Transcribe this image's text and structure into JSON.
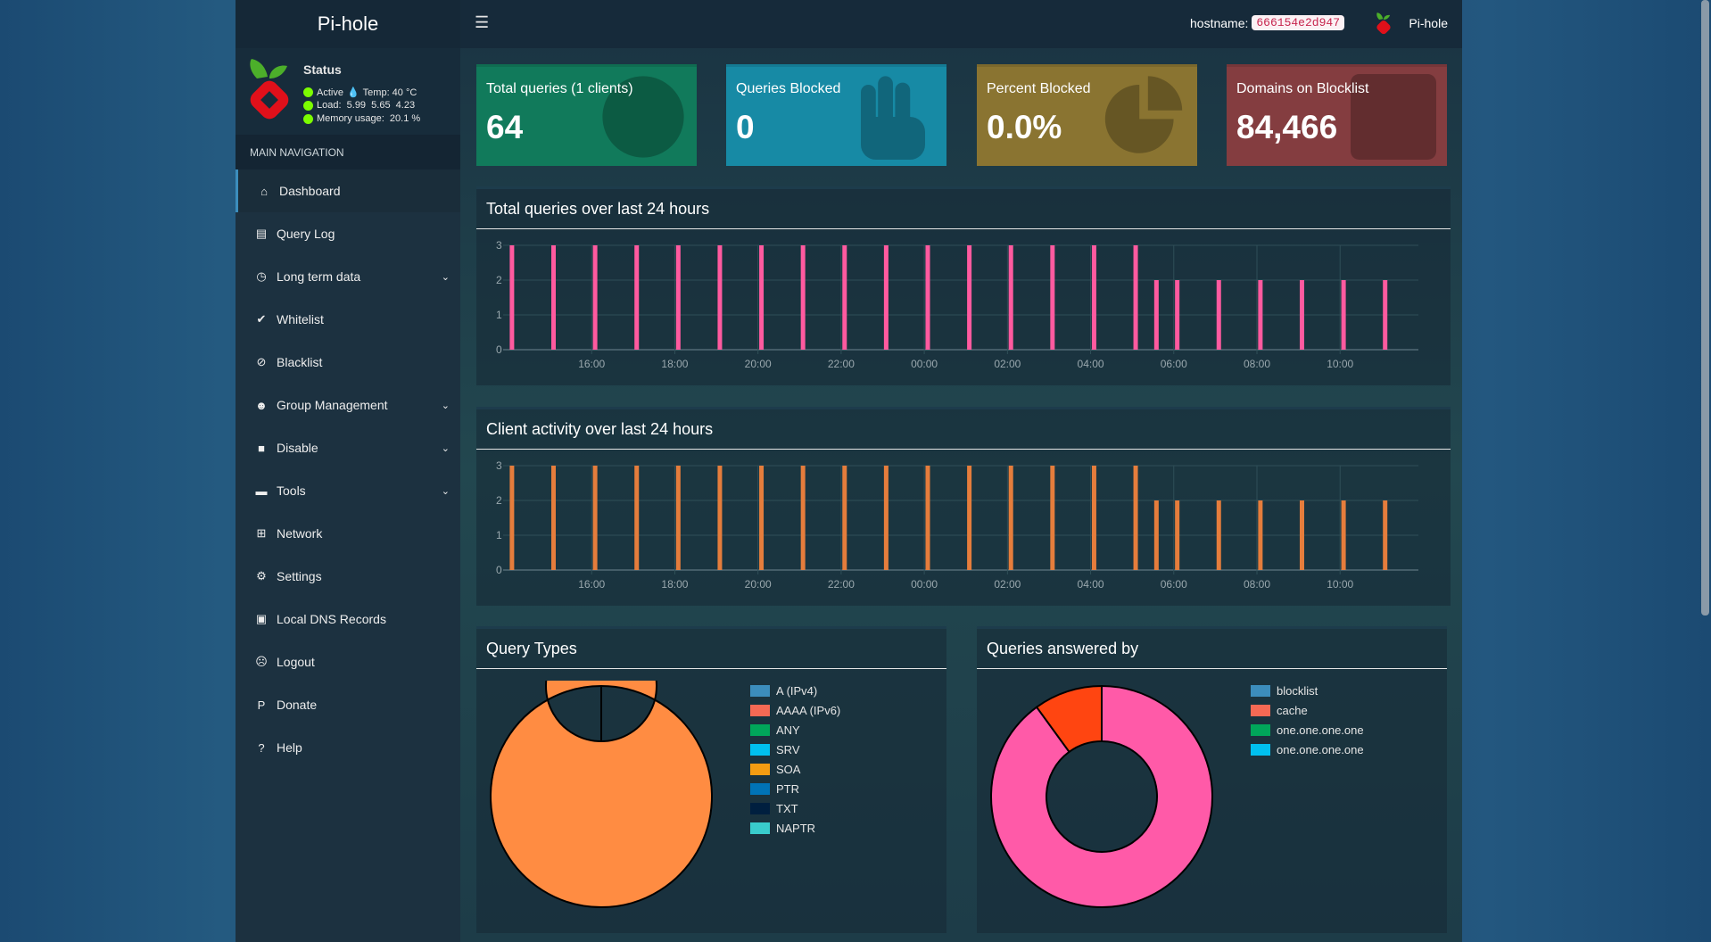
{
  "app": {
    "title": "Pi-hole",
    "title_pre": "Pi-",
    "title_post": "hole"
  },
  "status": {
    "title": "Status",
    "active": "Active",
    "temp": "Temp: 40 °C",
    "load": "Load:  5.99  5.65  4.23",
    "memory": "Memory usage:  20.1 %"
  },
  "nav": {
    "header": "MAIN NAVIGATION",
    "items": [
      {
        "label": "Dashboard",
        "icon": "home-icon",
        "glyph": "⌂",
        "active": true
      },
      {
        "label": "Query Log",
        "icon": "file-icon",
        "glyph": "▤"
      },
      {
        "label": "Long term data",
        "icon": "clock-icon",
        "glyph": "◷",
        "expand": true
      },
      {
        "label": "Whitelist",
        "icon": "check-circle-icon",
        "glyph": "✔"
      },
      {
        "label": "Blacklist",
        "icon": "ban-icon",
        "glyph": "⊘"
      },
      {
        "label": "Group Management",
        "icon": "users-icon",
        "glyph": "☻",
        "expand": true
      },
      {
        "label": "Disable",
        "icon": "stop-icon",
        "glyph": "■",
        "expand": true
      },
      {
        "label": "Tools",
        "icon": "folder-icon",
        "glyph": "▬",
        "expand": true
      },
      {
        "label": "Network",
        "icon": "network-icon",
        "glyph": "⊞"
      },
      {
        "label": "Settings",
        "icon": "cogs-icon",
        "glyph": "⚙"
      },
      {
        "label": "Local DNS Records",
        "icon": "address-book-icon",
        "glyph": "▣"
      },
      {
        "label": "Logout",
        "icon": "user-times-icon",
        "glyph": "☹"
      },
      {
        "label": "Donate",
        "icon": "paypal-icon",
        "glyph": "P"
      },
      {
        "label": "Help",
        "icon": "question-circle-icon",
        "glyph": "?"
      }
    ]
  },
  "header": {
    "hostname_label": "hostname:",
    "hostname": "666154e2d947",
    "user": "Pi-hole"
  },
  "stats": [
    {
      "label": "Total queries (1 clients)",
      "value": "64",
      "color": "#117a5b",
      "icon": "globe-icon"
    },
    {
      "label": "Queries Blocked",
      "value": "0",
      "color": "#178aa5",
      "icon": "hand-icon"
    },
    {
      "label": "Percent Blocked",
      "value": "0.0%",
      "color": "#8a7431",
      "icon": "pie-chart-icon"
    },
    {
      "label": "Domains on Blocklist",
      "value": "84,466",
      "color": "#843d40",
      "icon": "list-icon"
    }
  ],
  "chart_data": [
    {
      "type": "bar",
      "title": "Total queries over last 24 hours",
      "color": "#ff5a9f",
      "ylim": [
        0,
        3
      ],
      "yticks": [
        0,
        1,
        2,
        3
      ],
      "xlim": [
        "14:00",
        "11:53"
      ],
      "xticks": [
        "16:00",
        "18:00",
        "20:00",
        "22:00",
        "00:00",
        "02:00",
        "04:00",
        "06:00",
        "08:00",
        "10:00"
      ],
      "x": [
        "14:05",
        "15:05",
        "16:05",
        "17:05",
        "18:05",
        "19:05",
        "20:05",
        "21:05",
        "22:05",
        "23:05",
        "00:05",
        "01:05",
        "02:05",
        "03:05",
        "04:05",
        "05:05",
        "05:35",
        "06:05",
        "07:05",
        "08:05",
        "09:05",
        "10:05",
        "11:05"
      ],
      "values": [
        3,
        3,
        3,
        3,
        3,
        3,
        3,
        3,
        3,
        3,
        3,
        3,
        3,
        3,
        3,
        3,
        2,
        2,
        2,
        2,
        2,
        2,
        2
      ]
    },
    {
      "type": "bar",
      "title": "Client activity over last 24 hours",
      "color": "#e57d3c",
      "ylim": [
        0,
        3
      ],
      "yticks": [
        0,
        1,
        2,
        3
      ],
      "xlim": [
        "14:00",
        "11:53"
      ],
      "xticks": [
        "16:00",
        "18:00",
        "20:00",
        "22:00",
        "00:00",
        "02:00",
        "04:00",
        "06:00",
        "08:00",
        "10:00"
      ],
      "x": [
        "14:05",
        "15:05",
        "16:05",
        "17:05",
        "18:05",
        "19:05",
        "20:05",
        "21:05",
        "22:05",
        "23:05",
        "00:05",
        "01:05",
        "02:05",
        "03:05",
        "04:05",
        "05:05",
        "05:35",
        "06:05",
        "07:05",
        "08:05",
        "09:05",
        "10:05",
        "11:05"
      ],
      "values": [
        3,
        3,
        3,
        3,
        3,
        3,
        3,
        3,
        3,
        3,
        3,
        3,
        3,
        3,
        3,
        3,
        2,
        2,
        2,
        2,
        2,
        2,
        2
      ]
    },
    {
      "type": "pie",
      "title": "Query Types",
      "slices": [
        {
          "label": "A (IPv4)",
          "value": 100,
          "fill": "#ff8c42"
        }
      ],
      "legend": [
        {
          "label": "A (IPv4)",
          "color": "#3c8dbc"
        },
        {
          "label": "AAAA (IPv6)",
          "color": "#f56954"
        },
        {
          "label": "ANY",
          "color": "#00a65a"
        },
        {
          "label": "SRV",
          "color": "#00c0ef"
        },
        {
          "label": "SOA",
          "color": "#f39c12"
        },
        {
          "label": "PTR",
          "color": "#0073b7"
        },
        {
          "label": "TXT",
          "color": "#001f3f"
        },
        {
          "label": "NAPTR",
          "color": "#39cccc"
        }
      ]
    },
    {
      "type": "pie",
      "title": "Queries answered by",
      "slices": [
        {
          "label": "one.one.one.one",
          "value": 90,
          "fill": "#ff5aa8"
        },
        {
          "label": "cache",
          "value": 10,
          "fill": "#ff4511"
        }
      ],
      "legend": [
        {
          "label": "blocklist",
          "color": "#3c8dbc"
        },
        {
          "label": "cache",
          "color": "#f56954"
        },
        {
          "label": "one.one.one.one",
          "color": "#00a65a"
        },
        {
          "label": "one.one.one.one",
          "color": "#00c0ef"
        }
      ]
    }
  ]
}
